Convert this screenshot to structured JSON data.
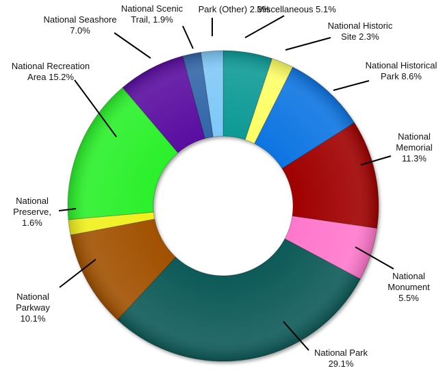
{
  "chart_data": {
    "type": "pie",
    "variant": "donut",
    "title": "",
    "start_angle_deg": 0,
    "direction": "clockwise",
    "center": [
      326,
      301
    ],
    "outer_radius": 227,
    "inner_radius": 102,
    "slices": [
      {
        "name": "Miscellaneous",
        "value": 5.1,
        "color": "#0e9a96",
        "label_lines": [
          "Miscellaneous 5.1%"
        ],
        "label_pos": [
          433,
          18
        ],
        "anchor": "middle",
        "leader": [
          [
            415,
            23
          ],
          [
            358,
            55
          ]
        ]
      },
      {
        "name": "National Historic Site",
        "value": 2.3,
        "color": "#ffff66",
        "label_lines": [
          "National Historic",
          "Site 2.3%"
        ],
        "label_pos": [
          526,
          42
        ],
        "anchor": "middle",
        "leader": [
          [
            483,
            55
          ],
          [
            417,
            73
          ]
        ]
      },
      {
        "name": "National Historical Park",
        "value": 8.6,
        "color": "#0a74e2",
        "label_lines": [
          "National Historical",
          "Park 8.6%"
        ],
        "label_pos": [
          586,
          100
        ],
        "anchor": "middle",
        "leader": [
          [
            539,
            118
          ],
          [
            487,
            132
          ]
        ]
      },
      {
        "name": "National Memorial",
        "value": 11.3,
        "color": "#a00000",
        "label_lines": [
          "National",
          "Memorial",
          "11.3%"
        ],
        "label_pos": [
          605,
          204
        ],
        "anchor": "middle",
        "leader": [
          [
            571,
            228
          ],
          [
            527,
            241
          ]
        ]
      },
      {
        "name": "National Monument",
        "value": 5.5,
        "color": "#ff77cc",
        "label_lines": [
          "National",
          "Monument",
          "5.5%"
        ],
        "label_pos": [
          597,
          408
        ],
        "anchor": "middle",
        "leader": [
          [
            575,
            393
          ],
          [
            519,
            361
          ]
        ]
      },
      {
        "name": "National Park",
        "value": 29.1,
        "color": "#085a58",
        "label_lines": [
          "National Park",
          "29.1%"
        ],
        "label_pos": [
          498,
          520
        ],
        "anchor": "middle",
        "leader": [
          [
            451,
            512
          ],
          [
            414,
            470
          ]
        ]
      },
      {
        "name": "National Parkway",
        "value": 10.1,
        "color": "#a15106",
        "label_lines": [
          "National",
          "Parkway",
          "10.1%"
        ],
        "label_pos": [
          48,
          438
        ],
        "anchor": "middle",
        "leader": [
          [
            87,
            420
          ],
          [
            140,
            379
          ]
        ]
      },
      {
        "name": "National Preserve",
        "value": 1.6,
        "color": "#f0f01c",
        "label_lines": [
          "National",
          "Preserve,",
          "1.6%"
        ],
        "label_pos": [
          47,
          298
        ],
        "anchor": "middle",
        "leader": [
          [
            86,
            308
          ],
          [
            111,
            305
          ]
        ]
      },
      {
        "name": "National Recreation Area",
        "value": 15.2,
        "color": "#2cf02c",
        "label_lines": [
          "National Recreation",
          "Area 15.2%"
        ],
        "label_pos": [
          74,
          101
        ],
        "anchor": "middle",
        "leader": [
          [
            109,
            117
          ],
          [
            170,
            200
          ]
        ]
      },
      {
        "name": "National Seashore",
        "value": 7.0,
        "color": "#5a0aa0",
        "label_lines": [
          "National Seashore",
          "7.0%"
        ],
        "label_pos": [
          117,
          33
        ],
        "anchor": "middle",
        "leader": [
          [
            167,
            48
          ],
          [
            220,
            85
          ]
        ]
      },
      {
        "name": "National Scenic Trail",
        "value": 1.9,
        "color": "#3366a8",
        "label_lines": [
          "National Scenic",
          "Trail, 1.9%"
        ],
        "label_pos": [
          222,
          17
        ],
        "anchor": "middle",
        "leader": [
          [
            267,
            38
          ],
          [
            282,
            71
          ]
        ]
      },
      {
        "name": "Park (Other)",
        "value": 2.3,
        "color": "#7fc8f8",
        "label_lines": [
          "Park (Other) 2.3%"
        ],
        "label_pos": [
          342,
          18
        ],
        "anchor": "middle",
        "leader": [
          [
            310,
            26
          ],
          [
            310,
            53
          ]
        ]
      }
    ]
  }
}
